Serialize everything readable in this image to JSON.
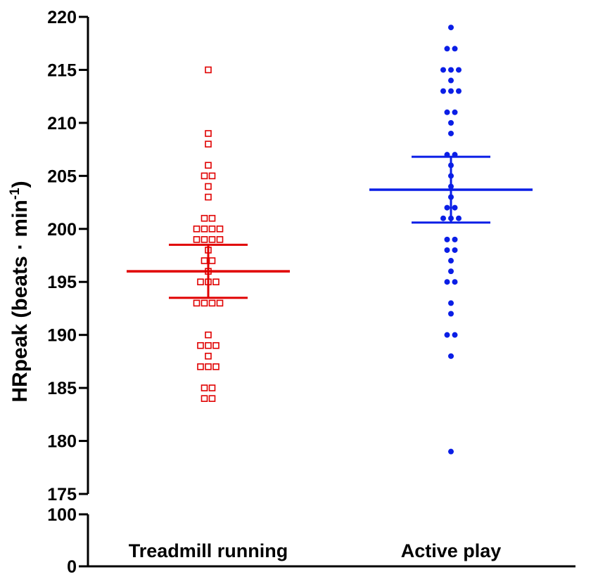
{
  "chart_data": {
    "type": "scatter",
    "ylabel": "HRpeak (beats · min",
    "ylabel_superscript": "-1",
    "ylabel_close": ")",
    "y_ticks_upper": [
      "175",
      "180",
      "185",
      "190",
      "195",
      "200",
      "205",
      "210",
      "215",
      "220"
    ],
    "y_ticks_lower": [
      "0",
      "100"
    ],
    "ylim_upper": [
      175,
      220
    ],
    "ylim_lower": [
      0,
      100
    ],
    "axis_break": true,
    "categories": [
      "Treadmill running",
      "Active play"
    ],
    "series": [
      {
        "category": "Treadmill running",
        "marker": "open-square",
        "color": "#e00000",
        "mean": 196,
        "error_upper": 198.5,
        "error_lower": 193.5,
        "values": [
          215,
          209,
          208,
          206,
          205,
          205,
          204,
          203,
          201,
          201,
          200,
          200,
          200,
          200,
          199,
          199,
          199,
          199,
          198,
          197,
          197,
          196,
          195,
          195,
          195,
          193,
          193,
          193,
          193,
          190,
          189,
          189,
          189,
          188,
          187,
          187,
          187,
          185,
          185,
          184,
          184
        ]
      },
      {
        "category": "Active play",
        "marker": "filled-circle",
        "color": "#0a1ee6",
        "mean": 203.7,
        "error_upper": 206.8,
        "error_lower": 200.6,
        "values": [
          219,
          217,
          217,
          215,
          215,
          215,
          214,
          213,
          213,
          213,
          211,
          211,
          210,
          209,
          207,
          207,
          206,
          205,
          204,
          203,
          202,
          202,
          201,
          201,
          201,
          199,
          199,
          198,
          198,
          197,
          196,
          195,
          195,
          193,
          192,
          190,
          190,
          188,
          179
        ]
      }
    ]
  }
}
